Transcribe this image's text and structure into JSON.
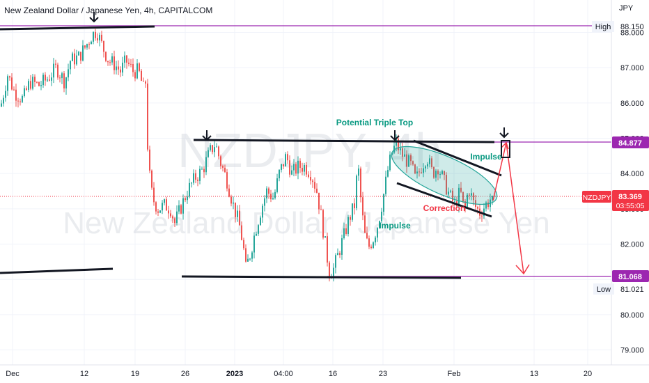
{
  "header": {
    "title": "New Zealand Dollar / Japanese Yen, 4h, CAPITALCOM",
    "currency": "JPY"
  },
  "watermark": {
    "symbol": "NZDJPY, 4h",
    "name": "New Zealand Dollar / Japanese Yen"
  },
  "chart_data": {
    "type": "candlestick",
    "symbol": "NZDJPY",
    "ylim": [
      78.6,
      88.6
    ],
    "y_ticks": [
      "79.000",
      "80.000",
      "81.000",
      "82.000",
      "83.000",
      "84.000",
      "85.000",
      "86.000",
      "87.000",
      "88.000"
    ],
    "x_ticks": [
      "Dec",
      "12",
      "19",
      "26",
      "2023",
      "04:00",
      "16",
      "23",
      "Feb",
      "13",
      "20"
    ],
    "price_labels": {
      "high_label": "High",
      "high": "88.150",
      "resistance": "84.877",
      "current_symbol": "NZDJPY",
      "current": "83.369",
      "countdown": "03:55:05",
      "support": "81.068",
      "low_label": "Low",
      "low": "81.021"
    },
    "levels": {
      "high": 88.15,
      "resistance": 84.877,
      "current": 83.369,
      "support": 81.068,
      "low": 81.021
    },
    "annotations": {
      "triple_top": "Potential Triple Top",
      "impulse_upper": "Impulse",
      "correction": "Correction",
      "impulse_lower": "Impulse"
    },
    "colors": {
      "up": "#26a69a",
      "down": "#ef5350",
      "level_line": "#9c27b0",
      "trend_line": "#131722",
      "annotation_green": "#089981",
      "annotation_red": "#f23645",
      "current_price": "#f23645"
    }
  }
}
